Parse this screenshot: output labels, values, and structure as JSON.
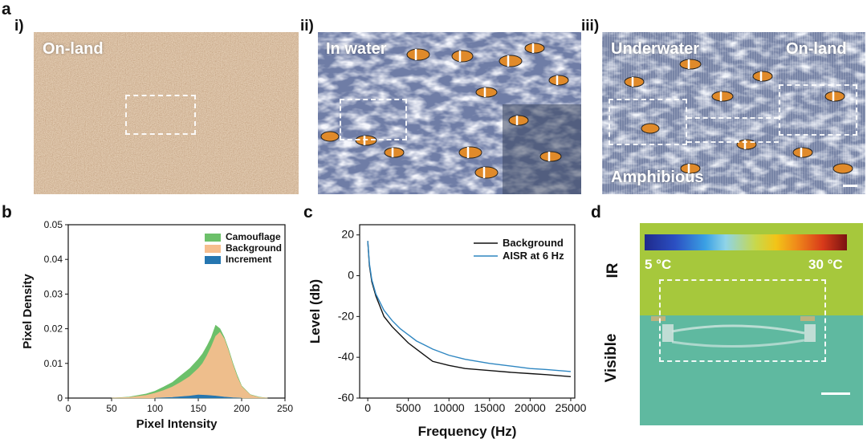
{
  "figure": {
    "panel_a": {
      "letter": "a",
      "sub_i": {
        "label": "i)",
        "text": "On-land"
      },
      "sub_ii": {
        "label": "ii)",
        "text": "In water"
      },
      "sub_iii": {
        "label": "iii)",
        "texts": [
          "Underwater",
          "On-land",
          "Amphibious"
        ]
      }
    },
    "panel_b": {
      "letter": "b"
    },
    "panel_c": {
      "letter": "c"
    },
    "panel_d": {
      "letter": "d",
      "ir_label": "IR",
      "visible_label": "Visible",
      "colorbar_min": "5 °C",
      "colorbar_max": "30 °C",
      "colors": {
        "ir_bg": "#a6c83c",
        "visible_bg": "#5fb9a0"
      }
    }
  },
  "chart_data": [
    {
      "type": "area",
      "panel": "b",
      "xlabel": "Pixel Intensity",
      "ylabel": "Pixel Density",
      "xlim": [
        0,
        250
      ],
      "ylim": [
        0,
        0.05
      ],
      "xticks": [
        "0",
        "50",
        "100",
        "150",
        "200",
        "250"
      ],
      "yticks": [
        "0",
        "0.01",
        "0.02",
        "0.03",
        "0.04",
        "0.05"
      ],
      "legend_position": "top-right",
      "series": [
        {
          "name": "Camouflage",
          "color": "#6cc06a",
          "x": [
            50,
            70,
            90,
            100,
            110,
            120,
            130,
            140,
            150,
            155,
            160,
            165,
            170,
            175,
            180,
            185,
            190,
            195,
            200,
            210,
            220,
            230
          ],
          "y": [
            0,
            0.0003,
            0.0012,
            0.002,
            0.0032,
            0.0045,
            0.0065,
            0.0085,
            0.0112,
            0.0128,
            0.015,
            0.0175,
            0.021,
            0.02,
            0.0175,
            0.014,
            0.01,
            0.0065,
            0.0035,
            0.001,
            0.0003,
            0
          ]
        },
        {
          "name": "Background",
          "color": "#f6be8e",
          "x": [
            50,
            70,
            90,
            100,
            110,
            120,
            130,
            140,
            150,
            155,
            160,
            165,
            170,
            175,
            180,
            185,
            190,
            195,
            200,
            210,
            220,
            230
          ],
          "y": [
            0,
            0.0002,
            0.0008,
            0.0014,
            0.0022,
            0.0032,
            0.0046,
            0.0062,
            0.0085,
            0.01,
            0.0122,
            0.0148,
            0.0178,
            0.019,
            0.017,
            0.0135,
            0.0095,
            0.006,
            0.0033,
            0.0009,
            0.0002,
            0
          ]
        },
        {
          "name": "Increment",
          "color": "#2576b0",
          "x": [
            100,
            120,
            130,
            140,
            150,
            160,
            170,
            180,
            190,
            200
          ],
          "y": [
            0,
            0.0002,
            0.0004,
            0.0006,
            0.0009,
            0.0008,
            0.0006,
            0.0003,
            0.0001,
            0
          ]
        }
      ]
    },
    {
      "type": "line",
      "panel": "c",
      "xlabel": "Frequency (Hz)",
      "ylabel": "Level (db)",
      "xlim": [
        -1000,
        25500
      ],
      "ylim": [
        -60,
        25
      ],
      "xticks": [
        "0",
        "5000",
        "10000",
        "15000",
        "20000",
        "25000"
      ],
      "yticks": [
        "20",
        "0",
        "-20",
        "-40",
        "-60"
      ],
      "legend_position": "top-right",
      "series": [
        {
          "name": "Background",
          "color": "#111111",
          "x": [
            0,
            200,
            500,
            1000,
            1500,
            2000,
            3000,
            4000,
            5000,
            6000,
            7000,
            8000,
            10000,
            12000,
            15000,
            18000,
            20000,
            22000,
            25000
          ],
          "y": [
            17,
            5,
            -3,
            -10,
            -15,
            -20,
            -25,
            -29,
            -33,
            -36,
            -39,
            -42,
            -44,
            -45.5,
            -46.5,
            -47.5,
            -48,
            -48.5,
            -49.5
          ]
        },
        {
          "name": "AISR at 6 Hz",
          "color": "#2e86c1",
          "x": [
            0,
            200,
            500,
            1000,
            1500,
            2000,
            3000,
            4000,
            5000,
            6000,
            7000,
            8000,
            10000,
            12000,
            15000,
            18000,
            20000,
            22000,
            25000
          ],
          "y": [
            17,
            6,
            -2,
            -9,
            -13,
            -17,
            -22,
            -26,
            -29,
            -32,
            -34,
            -36,
            -39,
            -41,
            -43,
            -44.5,
            -45.5,
            -46,
            -47
          ]
        }
      ]
    }
  ]
}
